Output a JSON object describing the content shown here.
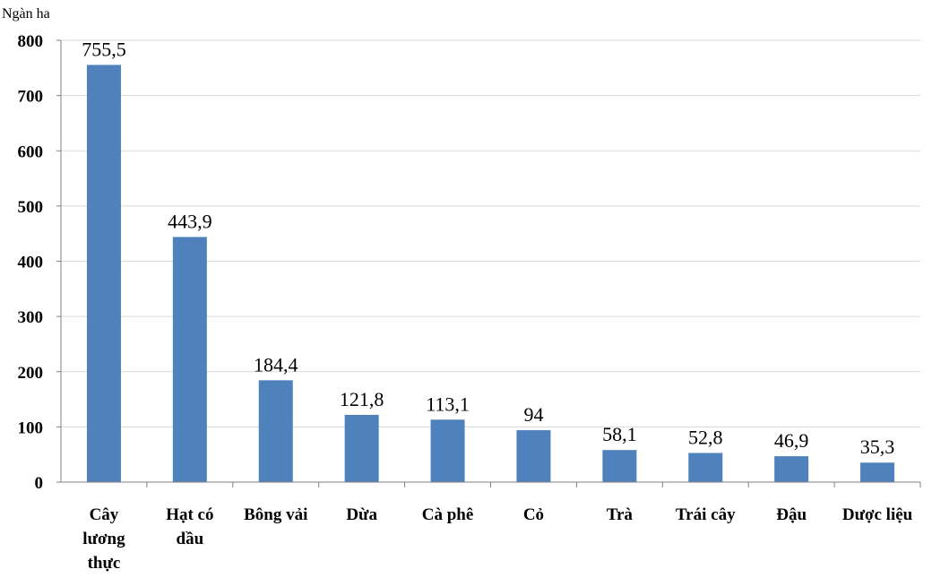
{
  "chart_data": {
    "type": "bar",
    "ylabel": "Ngàn ha",
    "ylim": [
      0,
      800
    ],
    "yticks": [
      0,
      100,
      200,
      300,
      400,
      500,
      600,
      700,
      800
    ],
    "grid": true,
    "legend": "none",
    "bar_color": "#4f81bd",
    "categories": [
      [
        "Cây",
        "lương",
        "thực"
      ],
      [
        "Hạt có",
        "dầu"
      ],
      [
        "Bông vải"
      ],
      [
        "Dừa"
      ],
      [
        "Cà phê"
      ],
      [
        "Cỏ"
      ],
      [
        "Trà"
      ],
      [
        "Trái cây"
      ],
      [
        "Đậu"
      ],
      [
        "Dược liệu"
      ]
    ],
    "values": [
      755.5,
      443.9,
      184.4,
      121.8,
      113.1,
      94,
      58.1,
      52.8,
      46.9,
      35.3
    ],
    "value_labels": [
      "755,5",
      "443,9",
      "184,4",
      "121,8",
      "113,1",
      "94",
      "58,1",
      "52,8",
      "46,9",
      "35,3"
    ]
  }
}
